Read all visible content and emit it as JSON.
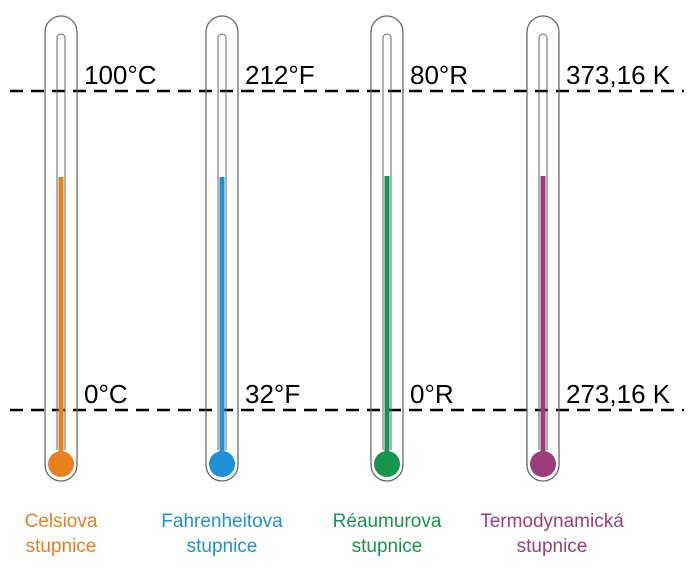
{
  "thermometers": [
    {
      "key": "celsius",
      "color": "#E8801E",
      "upper": "100°C",
      "lower": "0°C",
      "caption_line1": "Celsiova",
      "caption_line2": "stupnice"
    },
    {
      "key": "fahrenheit",
      "color": "#1E90D8",
      "upper": "212°F",
      "lower": "32°F",
      "caption_line1": "Fahrenheitova",
      "caption_line2": "stupnice"
    },
    {
      "key": "reaumur",
      "color": "#17954A",
      "upper": "80°R",
      "lower": "0°R",
      "caption_line1": "Réaumurova",
      "caption_line2": "stupnice"
    },
    {
      "key": "kelvin",
      "color": "#9C3C78",
      "upper": "373,16 K",
      "lower": "273,16 K",
      "caption_line1": "Termodynamická",
      "caption_line2": "stupnice"
    }
  ]
}
